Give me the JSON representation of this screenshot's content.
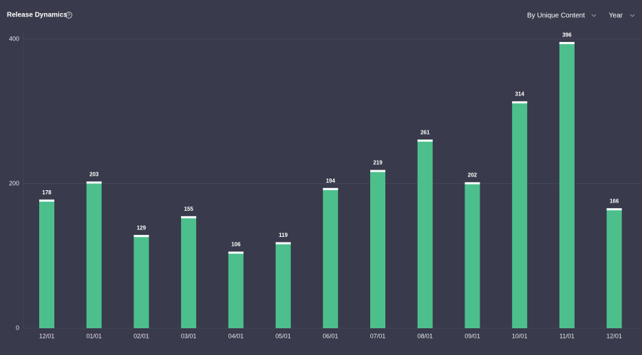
{
  "chart_data": {
    "type": "bar",
    "title": "Release Dynamics",
    "categories": [
      "12/01",
      "01/01",
      "02/01",
      "03/01",
      "04/01",
      "05/01",
      "06/01",
      "07/01",
      "08/01",
      "09/01",
      "10/01",
      "11/01",
      "12/01"
    ],
    "values": [
      178,
      203,
      129,
      155,
      106,
      119,
      194,
      219,
      261,
      202,
      314,
      396,
      166
    ],
    "color": "#4cbf8c",
    "ylim": [
      0,
      400
    ],
    "yticks": [
      0,
      200,
      400
    ],
    "grid": true
  },
  "controls": [
    "By Unique Content",
    "Year"
  ]
}
